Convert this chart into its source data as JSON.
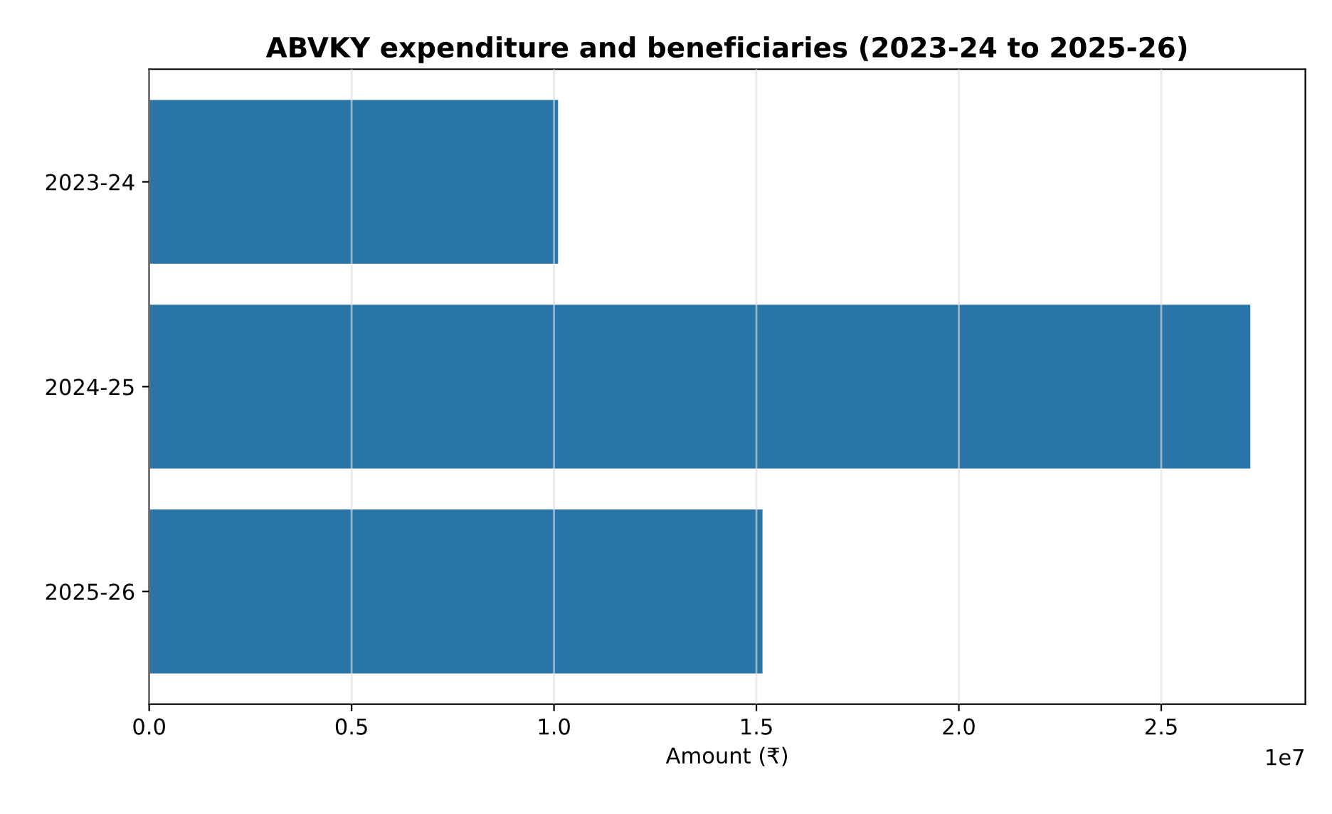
{
  "chart_data": {
    "type": "bar",
    "orientation": "horizontal",
    "title": "ABVKY expenditure and beneficiaries (2023-24 to 2025-26)",
    "xlabel": "Amount (₹)",
    "categories": [
      "2023-24",
      "2024-25",
      "2025-26"
    ],
    "values": [
      1.01,
      2.72,
      1.515
    ],
    "color": "#2a75a8",
    "xlim": [
      0,
      2.856
    ],
    "xticks": [
      {
        "value": 0,
        "label": "0.0"
      },
      {
        "value": 0.5,
        "label": "0.5"
      },
      {
        "value": 1,
        "label": "1.0"
      },
      {
        "value": 1.5,
        "label": "1.5"
      },
      {
        "value": 2,
        "label": "2.0"
      },
      {
        "value": 2.5,
        "label": "2.5"
      }
    ],
    "annotations": [
      "1e7"
    ],
    "grid": "x",
    "legend": false
  }
}
